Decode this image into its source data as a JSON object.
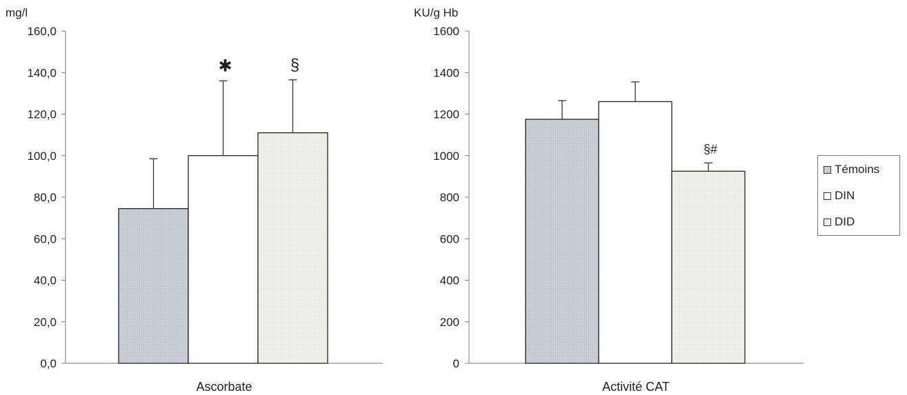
{
  "chart_data": [
    {
      "type": "bar",
      "categories": [
        "Ascorbate"
      ],
      "ylabel": "mg/l",
      "ylim": [
        0,
        160
      ],
      "yticks": [
        "0,0",
        "20,0",
        "40,0",
        "60,0",
        "80,0",
        "100,0",
        "120,0",
        "140,0",
        "160,0"
      ],
      "grid": false,
      "series": [
        {
          "name": "Témoins",
          "values": [
            74.5
          ],
          "error": [
            24
          ],
          "annotation": ""
        },
        {
          "name": "DIN",
          "values": [
            100
          ],
          "error": [
            36
          ],
          "annotation": "✱"
        },
        {
          "name": "DID",
          "values": [
            111
          ],
          "error": [
            25.5
          ],
          "annotation": "§"
        }
      ]
    },
    {
      "type": "bar",
      "categories": [
        "Activité CAT"
      ],
      "ylabel": "KU/g Hb",
      "ylim": [
        0,
        1600
      ],
      "yticks": [
        "0",
        "200",
        "400",
        "600",
        "800",
        "1000",
        "1200",
        "1400",
        "1600"
      ],
      "grid": false,
      "series": [
        {
          "name": "Témoins",
          "values": [
            1175
          ],
          "error": [
            90
          ],
          "annotation": ""
        },
        {
          "name": "DIN",
          "values": [
            1260
          ],
          "error": [
            95
          ],
          "annotation": ""
        },
        {
          "name": "DID",
          "values": [
            925
          ],
          "error": [
            40
          ],
          "annotation": "§#"
        }
      ]
    }
  ],
  "legend": {
    "placement": "right",
    "items": [
      {
        "label": "Témoins",
        "color": "#c9cfd6"
      },
      {
        "label": "DIN",
        "color": "#ffffff"
      },
      {
        "label": "DID",
        "color": "#eef0ea"
      }
    ]
  },
  "colors": {
    "axis": "#777777",
    "bar_stroke": "#222222"
  }
}
